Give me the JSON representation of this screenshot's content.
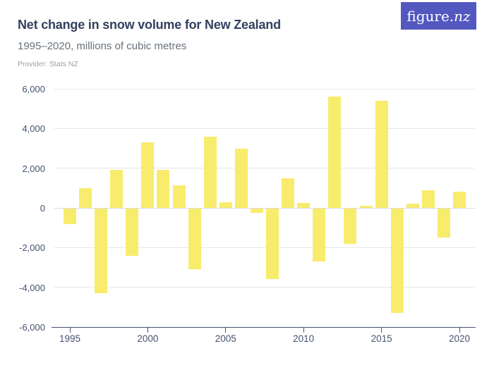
{
  "header": {
    "title": "Net change in snow volume for New Zealand",
    "subtitle": "1995–2020, millions of cubic metres",
    "provider_label": "Provider: Stats NZ",
    "logo": {
      "main": "figure.",
      "accent": "nz"
    }
  },
  "colors": {
    "bar": "#f8ec6d",
    "logo_bg": "#5358c0",
    "title_text": "#33415e",
    "subtitle_text": "#68717b",
    "provider_text": "#98a0a8",
    "axis_text": "#44516f",
    "gridline": "#e6e6e9",
    "zero_line": "#dcdcdf"
  },
  "chart_data": {
    "type": "bar",
    "title": "Net change in snow volume for New Zealand",
    "subtitle": "1995–2020, millions of cubic metres",
    "xlabel": "",
    "ylabel": "millions of cubic metres",
    "categories": [
      1995,
      1996,
      1997,
      1998,
      1999,
      2000,
      2001,
      2002,
      2003,
      2004,
      2005,
      2006,
      2007,
      2008,
      2009,
      2010,
      2011,
      2012,
      2013,
      2014,
      2015,
      2016,
      2017,
      2018,
      2019,
      2020
    ],
    "values": [
      -800,
      1000,
      -4300,
      1900,
      -2400,
      3300,
      1900,
      1150,
      -3100,
      3600,
      300,
      3000,
      -250,
      -3600,
      1500,
      250,
      -2700,
      5600,
      -1800,
      100,
      5400,
      -5300,
      200,
      900,
      -1500,
      800
    ],
    "ylim": [
      -6000,
      6000
    ],
    "yticks": [
      6000,
      4000,
      2000,
      0,
      -2000,
      -4000,
      -6000
    ],
    "ytick_labels": [
      "6,000",
      "4,000",
      "2,000",
      "0",
      "-2,000",
      "-4,000",
      "-6,000"
    ],
    "xticks": [
      1995,
      2000,
      2005,
      2010,
      2015,
      2020
    ],
    "grid": true,
    "legend": false,
    "bar_color": "#f8ec6d"
  }
}
